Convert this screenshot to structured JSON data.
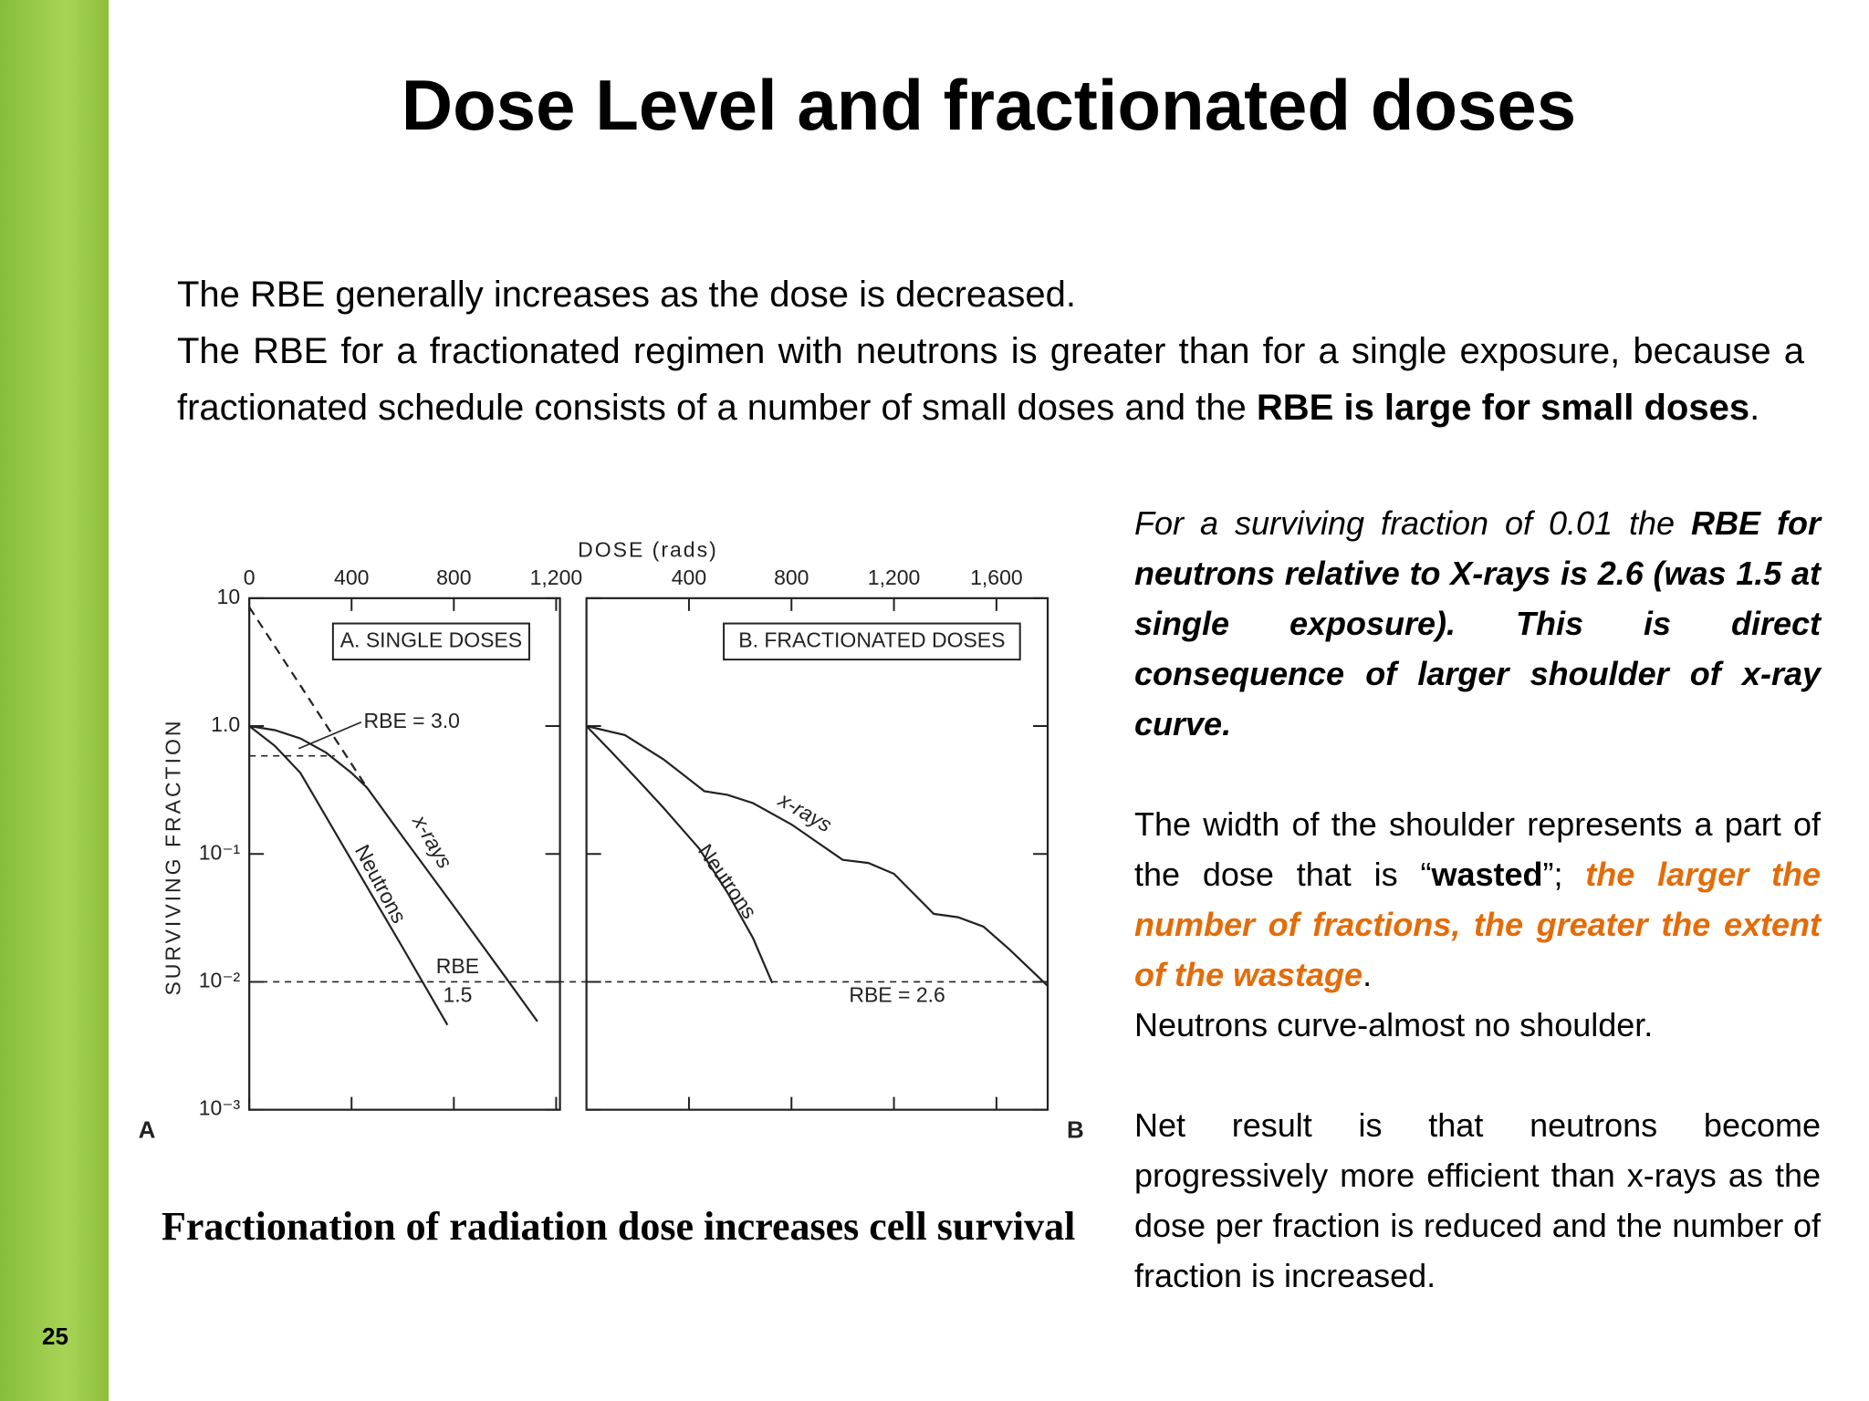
{
  "slide_number": "25",
  "title": "Dose Level and fractionated doses",
  "intro": {
    "sentence": "The RBE generally increases as the dose is decreased.",
    "text": "The RBE for a fractionated regimen with neutrons is greater than for a single exposure, because a fractionated schedule consists of a number of small doses and the ",
    "bold": "RBE is large for small doses",
    "end": "."
  },
  "figure": {
    "axis_title": "DOSE (rads)",
    "y_label": "SURVIVING FRACTION",
    "ylim": [
      0.001,
      10
    ],
    "log_y": true,
    "yticks": [
      10,
      {
        "value": 1,
        "label": "1.0"
      },
      {
        "value": 0.1,
        "label": "10⁻¹"
      },
      {
        "value": 0.01,
        "label": "10⁻²"
      },
      {
        "value": 0.001,
        "label": "10⁻³"
      }
    ],
    "reference_line": 0.01,
    "panels": [
      {
        "letter": "A",
        "title": "A. SINGLE DOSES",
        "xlim": [
          0,
          1215
        ],
        "xticks": [
          0,
          400,
          800,
          {
            "value": 1200,
            "label": "1,200"
          }
        ],
        "series": [
          {
            "name": "x-rays",
            "x": [
              0,
              100,
              200,
              300,
              400,
              460,
              600,
              800,
              1000,
              1127
            ],
            "values": [
              1,
              0.93,
              0.8,
              0.62,
              0.43,
              0.33,
              0.136,
              0.039,
              0.011,
              0.0049
            ]
          },
          {
            "name": "Neutrons",
            "x": [
              0,
              100,
              200,
              400,
              600,
              775
            ],
            "values": [
              1,
              0.7,
              0.43,
              0.089,
              0.0185,
              0.0046
            ]
          }
        ],
        "extrapolation": {
          "x": [
            0,
            460
          ],
          "values": [
            8.5,
            0.33
          ]
        },
        "annotations": {
          "shoulder": "RBE = 3.0",
          "rbe": "RBE",
          "rbe_value": "1.5"
        }
      },
      {
        "letter": "B",
        "title": "B. FRACTIONATED DOSES",
        "xlim": [
          0,
          1800
        ],
        "xticks": [
          400,
          800,
          {
            "value": 1200,
            "label": "1,200"
          },
          {
            "value": 1600,
            "label": "1,600"
          }
        ],
        "series": [
          {
            "name": "x-rays",
            "x": [
              0,
              150,
              300,
              460,
              550,
              650,
              800,
              1000,
              1100,
              1200,
              1355,
              1450,
              1550,
              1650,
              1800
            ],
            "values": [
              1,
              0.85,
              0.55,
              0.31,
              0.29,
              0.25,
              0.17,
              0.09,
              0.085,
              0.07,
              0.034,
              0.032,
              0.027,
              0.018,
              0.0093
            ]
          },
          {
            "name": "Neutrons",
            "x": [
              0,
              100,
              200,
              300,
              440,
              550,
              650,
              725
            ],
            "values": [
              1,
              0.62,
              0.38,
              0.23,
              0.11,
              0.05,
              0.022,
              0.0098
            ]
          }
        ],
        "annotations": {
          "rbe": "RBE = 2.6"
        }
      }
    ]
  },
  "caption": "Fractionation of radiation dose increases cell survival",
  "notes": [
    {
      "intro": "For a surviving fraction of 0.01 the ",
      "bold": "RBE for neutrons relative to X-rays is 2.6 (was 1.5 at single exposure). This is direct consequence of larger shoulder of x-ray curve."
    },
    {
      "text": "The width of the shoulder represents a part of the dose that is “",
      "bold": "wasted",
      "after": "”; ",
      "highlight": "the larger the  number of fractions, the greater the extent of the wastage",
      "end": ".",
      "line2": "Neutrons curve-almost no  shoulder."
    },
    {
      "text": "Net result is that neutrons become progressively more efficient than x-rays as the dose per fraction is reduced and the number of fraction is increased."
    }
  ]
}
